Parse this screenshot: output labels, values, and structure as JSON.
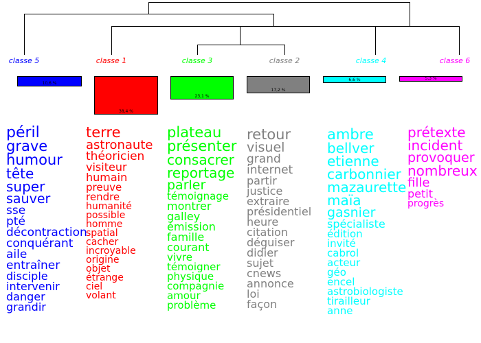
{
  "classes": [
    {
      "label": "classe  5",
      "color": "#0000ff",
      "bar_color": "#0000ff",
      "share": 0.106,
      "pct_label": "10,6 %",
      "words": [
        {
          "t": "péril",
          "s": 22
        },
        {
          "t": "grave",
          "s": 21
        },
        {
          "t": "humour",
          "s": 21
        },
        {
          "t": "tête",
          "s": 20
        },
        {
          "t": "super",
          "s": 20
        },
        {
          "t": "sauver",
          "s": 19
        },
        {
          "t": "sse",
          "s": 17
        },
        {
          "t": "pté",
          "s": 17
        },
        {
          "t": "décontraction",
          "s": 17
        },
        {
          "t": "conquérant",
          "s": 17
        },
        {
          "t": "aile",
          "s": 17
        },
        {
          "t": "entraîner",
          "s": 17
        },
        {
          "t": "disciple",
          "s": 16
        },
        {
          "t": "intervenir",
          "s": 16
        },
        {
          "t": "danger",
          "s": 16
        },
        {
          "t": "grandir",
          "s": 16
        }
      ]
    },
    {
      "label": "classe  1",
      "color": "#ff0000",
      "bar_color": "#ff0000",
      "share": 0.384,
      "pct_label": "38,4 %",
      "words": [
        {
          "t": "terre",
          "s": 21
        },
        {
          "t": "astronaute",
          "s": 18
        },
        {
          "t": "théoricien",
          "s": 17
        },
        {
          "t": "visiteur",
          "s": 16
        },
        {
          "t": "humain",
          "s": 16
        },
        {
          "t": "preuve",
          "s": 15
        },
        {
          "t": "rendre",
          "s": 15
        },
        {
          "t": "humanité",
          "s": 14
        },
        {
          "t": "possible",
          "s": 14
        },
        {
          "t": "homme",
          "s": 14
        },
        {
          "t": "spatial",
          "s": 14
        },
        {
          "t": "cacher",
          "s": 14
        },
        {
          "t": "incroyable",
          "s": 14
        },
        {
          "t": "origine",
          "s": 14
        },
        {
          "t": "objet",
          "s": 14
        },
        {
          "t": "étrange",
          "s": 14
        },
        {
          "t": "ciel",
          "s": 14
        },
        {
          "t": "volant",
          "s": 14
        }
      ]
    },
    {
      "label": "classe  3",
      "color": "#00ff00",
      "bar_color": "#00ff00",
      "share": 0.231,
      "pct_label": "23,1 %",
      "words": [
        {
          "t": "plateau",
          "s": 21
        },
        {
          "t": "présenter",
          "s": 21
        },
        {
          "t": "consacrer",
          "s": 20
        },
        {
          "t": "reportage",
          "s": 20
        },
        {
          "t": "parler",
          "s": 19
        },
        {
          "t": "témoignage",
          "s": 15
        },
        {
          "t": "montrer",
          "s": 16
        },
        {
          "t": "galley",
          "s": 16
        },
        {
          "t": "émission",
          "s": 16
        },
        {
          "t": "famille",
          "s": 16
        },
        {
          "t": "courant",
          "s": 16
        },
        {
          "t": "vivre",
          "s": 15
        },
        {
          "t": "témoigner",
          "s": 15
        },
        {
          "t": "physique",
          "s": 15
        },
        {
          "t": "compagnie",
          "s": 15
        },
        {
          "t": "amour",
          "s": 15
        },
        {
          "t": "problème",
          "s": 15
        }
      ]
    },
    {
      "label": "classe  2",
      "color": "#808080",
      "bar_color": "#808080",
      "share": 0.172,
      "pct_label": "17,2 %",
      "words": [
        {
          "t": "retour",
          "s": 21
        },
        {
          "t": "visuel",
          "s": 19
        },
        {
          "t": "grand",
          "s": 17
        },
        {
          "t": "internet",
          "s": 17
        },
        {
          "t": "partir",
          "s": 16
        },
        {
          "t": "justice",
          "s": 16
        },
        {
          "t": "extraire",
          "s": 16
        },
        {
          "t": "présidentiel",
          "s": 16
        },
        {
          "t": "heure",
          "s": 16
        },
        {
          "t": "citation",
          "s": 16
        },
        {
          "t": "déguiser",
          "s": 16
        },
        {
          "t": "didier",
          "s": 16
        },
        {
          "t": "sujet",
          "s": 16
        },
        {
          "t": "cnews",
          "s": 16
        },
        {
          "t": "annonce",
          "s": 16
        },
        {
          "t": "loi",
          "s": 16
        },
        {
          "t": "façon",
          "s": 16
        }
      ]
    },
    {
      "label": "classe  4",
      "color": "#00ffff",
      "bar_color": "#00ffff",
      "share": 0.066,
      "pct_label": "6,6 %",
      "words": [
        {
          "t": "ambre",
          "s": 21
        },
        {
          "t": "bellver",
          "s": 20
        },
        {
          "t": "etienne",
          "s": 20
        },
        {
          "t": "carbonnier",
          "s": 20
        },
        {
          "t": "mazaurette",
          "s": 20
        },
        {
          "t": "maïa",
          "s": 20
        },
        {
          "t": "gasnier",
          "s": 19
        },
        {
          "t": "spécialiste",
          "s": 16
        },
        {
          "t": "édition",
          "s": 15
        },
        {
          "t": "invité",
          "s": 15
        },
        {
          "t": "cabrol",
          "s": 15
        },
        {
          "t": "acteur",
          "s": 15
        },
        {
          "t": "géo",
          "s": 15
        },
        {
          "t": "encel",
          "s": 15
        },
        {
          "t": "astrobiologiste",
          "s": 15
        },
        {
          "t": "tirailleur",
          "s": 15
        },
        {
          "t": "anne",
          "s": 15
        }
      ]
    },
    {
      "label": "classe  6",
      "color": "#ff00ff",
      "bar_color": "#ff00ff",
      "share": 0.053,
      "pct_label": "5,3 %",
      "words": [
        {
          "t": "prétexte",
          "s": 20
        },
        {
          "t": "incident",
          "s": 20
        },
        {
          "t": "provoquer",
          "s": 19
        },
        {
          "t": "nombreux",
          "s": 20
        },
        {
          "t": "fille",
          "s": 18
        },
        {
          "t": "petit",
          "s": 16
        },
        {
          "t": "progrès",
          "s": 14
        }
      ]
    }
  ]
}
